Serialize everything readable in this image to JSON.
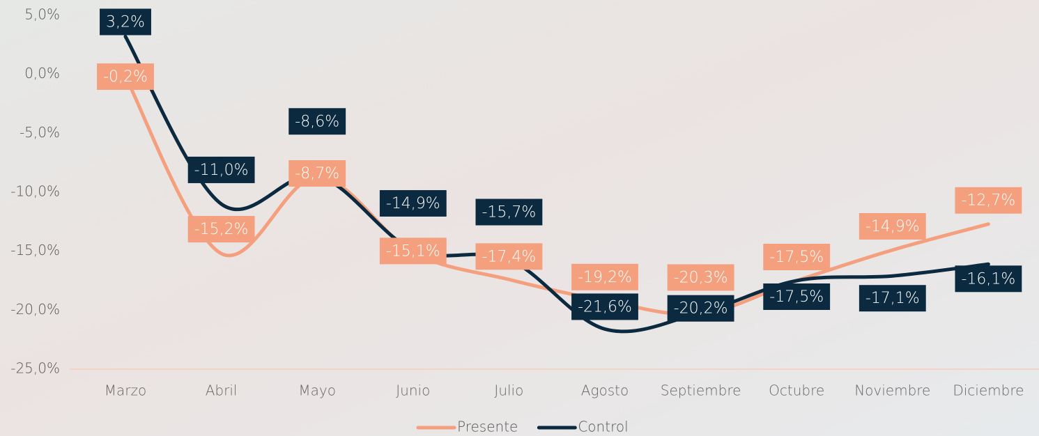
{
  "chart_data": {
    "type": "line",
    "categories": [
      "Marzo",
      "Abril",
      "Mayo",
      "Junio",
      "Julio",
      "Agosto",
      "Septiembre",
      "Octubre",
      "Noviembre",
      "Diciembre"
    ],
    "series": [
      {
        "name": "Presente",
        "color": "#f4a07e",
        "values": [
          -0.2,
          -15.2,
          -8.7,
          -15.1,
          -17.4,
          -19.2,
          -20.3,
          -17.5,
          -14.9,
          -12.7
        ],
        "value_labels": [
          "-0,2%",
          "-15,2%",
          "-8,7%",
          "-15,1%",
          "-17,4%",
          "-19,2%",
          "-20,3%",
          "-17,5%",
          "-14,9%",
          "-12,7%"
        ]
      },
      {
        "name": "Control",
        "color": "#0b2a40",
        "values": [
          3.2,
          -11.0,
          -8.6,
          -14.9,
          -15.7,
          -21.6,
          -20.2,
          -17.5,
          -17.1,
          -16.1
        ],
        "value_labels": [
          "3,2%",
          "-11,0%",
          "-8,6%",
          "-14,9%",
          "-15,7%",
          "-21,6%",
          "-20,2%",
          "-17,5%",
          "-17,1%",
          "-16,1%"
        ]
      }
    ],
    "ylim": [
      -25,
      5
    ],
    "yticks": [
      {
        "value": 5,
        "label": "5,0%"
      },
      {
        "value": 0,
        "label": "0,0%"
      },
      {
        "value": -5,
        "label": "-5,0%"
      },
      {
        "value": -10,
        "label": "-10,0%"
      },
      {
        "value": -15,
        "label": "-15,0%"
      },
      {
        "value": -20,
        "label": "-20,0%"
      },
      {
        "value": -25,
        "label": "-25,0%"
      }
    ],
    "legend": "bottom"
  }
}
